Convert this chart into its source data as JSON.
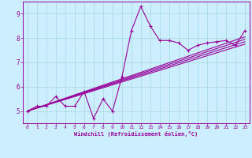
{
  "xlabel": "Windchill (Refroidissement éolien,°C)",
  "bg_color": "#cceeff",
  "line_color": "#990099",
  "grid_color": "#aadddd",
  "xlim": [
    -0.5,
    23.5
  ],
  "ylim": [
    4.5,
    9.5
  ],
  "xticks": [
    0,
    1,
    2,
    3,
    4,
    5,
    6,
    7,
    8,
    9,
    10,
    11,
    12,
    13,
    14,
    15,
    16,
    17,
    18,
    19,
    20,
    21,
    22,
    23
  ],
  "yticks": [
    5,
    6,
    7,
    8,
    9
  ],
  "data_x": [
    0,
    1,
    2,
    3,
    4,
    5,
    6,
    7,
    8,
    9,
    10,
    11,
    12,
    13,
    14,
    15,
    16,
    17,
    18,
    19,
    20,
    21,
    22,
    23
  ],
  "data_y": [
    5.0,
    5.2,
    5.2,
    5.6,
    5.2,
    5.2,
    5.8,
    4.7,
    5.5,
    5.0,
    6.4,
    8.3,
    9.3,
    8.5,
    7.9,
    7.9,
    7.8,
    7.5,
    7.7,
    7.8,
    7.85,
    7.9,
    7.7,
    8.3
  ],
  "trend_lines": [
    {
      "x0": 0,
      "y0": 5.0,
      "x1": 23,
      "y1": 8.05
    },
    {
      "x0": 0,
      "y0": 5.0,
      "x1": 23,
      "y1": 7.95
    },
    {
      "x0": 0,
      "y0": 5.0,
      "x1": 23,
      "y1": 7.85
    },
    {
      "x0": 0,
      "y0": 5.0,
      "x1": 23,
      "y1": 7.75
    }
  ]
}
